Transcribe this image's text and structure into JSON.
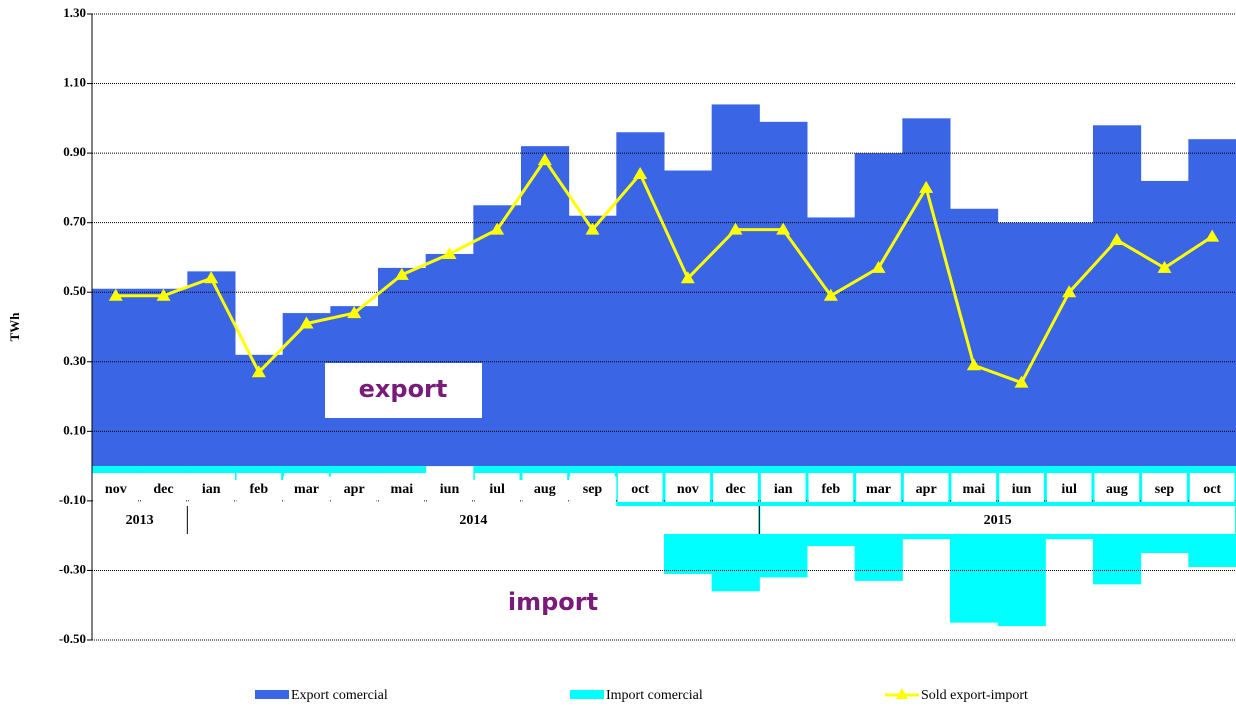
{
  "chart_data": {
    "type": "bar-line",
    "y_label": "TWh",
    "categories": [
      "nov",
      "dec",
      "ian",
      "feb",
      "mar",
      "apr",
      "mai",
      "iun",
      "iul",
      "aug",
      "sep",
      "oct",
      "nov",
      "dec",
      "ian",
      "feb",
      "mar",
      "apr",
      "mai",
      "iun",
      "iul",
      "aug",
      "sep",
      "oct"
    ],
    "year_groups": [
      "2013",
      "2014",
      "2015"
    ],
    "series": [
      {
        "name": "Export comercial",
        "color": "#3a66e6",
        "kind": "bar",
        "values": [
          0.51,
          0.51,
          0.56,
          0.32,
          0.44,
          0.46,
          0.57,
          0.61,
          0.75,
          0.92,
          0.72,
          0.96,
          0.85,
          1.04,
          0.99,
          0.715,
          0.9,
          1.0,
          0.74,
          0.7,
          0.7,
          0.98,
          0.82,
          0.94
        ]
      },
      {
        "name": "Import comercial",
        "color": "#00ffff",
        "kind": "bar",
        "values": [
          -0.02,
          -0.02,
          -0.02,
          -0.04,
          -0.03,
          -0.02,
          -0.02,
          0,
          -0.04,
          -0.04,
          -0.03,
          -0.12,
          -0.31,
          -0.36,
          -0.32,
          -0.23,
          -0.33,
          -0.21,
          -0.45,
          -0.46,
          -0.21,
          -0.34,
          -0.25,
          -0.29
        ]
      },
      {
        "name": "Sold export-import",
        "color": "#ffff00",
        "kind": "line",
        "values": [
          0.49,
          0.49,
          0.54,
          0.27,
          0.41,
          0.44,
          0.55,
          0.61,
          0.68,
          0.88,
          0.68,
          0.84,
          0.54,
          0.68,
          0.68,
          0.49,
          0.57,
          0.8,
          0.29,
          0.24,
          0.5,
          0.65,
          0.57,
          0.66
        ]
      }
    ],
    "annotations": [
      "export",
      "import"
    ],
    "ylim": [
      -0.5,
      1.3
    ],
    "yticks": [
      {
        "value": -0.5,
        "label": "-0.50"
      },
      {
        "value": -0.3,
        "label": "-0.30"
      },
      {
        "value": -0.1,
        "label": "-0.10"
      },
      {
        "value": 0.1,
        "label": "0.10"
      },
      {
        "value": 0.3,
        "label": "0.30"
      },
      {
        "value": 0.5,
        "label": "0.50"
      },
      {
        "value": 0.7,
        "label": "0.70"
      },
      {
        "value": 0.9,
        "label": "0.90"
      },
      {
        "value": 1.1,
        "label": "1.10"
      },
      {
        "value": 1.3,
        "label": "1.30"
      }
    ],
    "grid": true
  }
}
